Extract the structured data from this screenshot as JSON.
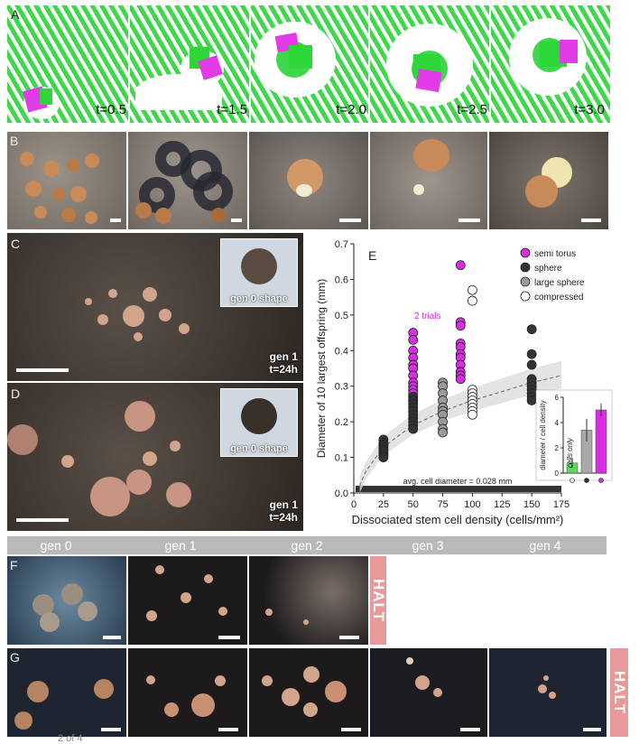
{
  "panels": {
    "A": {
      "label": "A",
      "times": [
        "t=0.5",
        "t=1.5",
        "t=2.0",
        "t=2.5",
        "t=3.0"
      ]
    },
    "B": {
      "label": "B"
    },
    "C": {
      "label": "C",
      "inset_label": "gen 0 shape",
      "gen_label": "gen 1",
      "time_label": "t=24h"
    },
    "D": {
      "label": "D",
      "inset_label": "gen 0 shape",
      "gen_label": "gen 1",
      "time_label": "t=24h"
    },
    "E": {
      "label": "E"
    },
    "F": {
      "label": "F",
      "halt": "HALT"
    },
    "G": {
      "label": "G",
      "halt": "HALT"
    }
  },
  "generation_bar": [
    "gen 0",
    "gen 1",
    "gen 2",
    "gen 3",
    "gen 4"
  ],
  "pager": "2 of 4",
  "colors": {
    "green": "#3fd84a",
    "magenta": "#d62ee0",
    "halt": "#e89a9a",
    "genbar": "#b9b9b9"
  },
  "chart_data": {
    "type": "scatter",
    "xlabel": "Dissociated stem cell density (cells/mm²)",
    "ylabel": "Diameter of 10 largest offspring (mm)",
    "xlim": [
      0,
      175
    ],
    "ylim": [
      0,
      0.7
    ],
    "xticks": [
      0,
      25,
      50,
      75,
      100,
      125,
      150,
      175
    ],
    "yticks": [
      0.0,
      0.1,
      0.2,
      0.3,
      0.4,
      0.5,
      0.6,
      0.7
    ],
    "annotation_trials": "2 trials",
    "annotation_baseline": "avg. cell diameter = 0.028 mm",
    "legend_position": "top-right",
    "series": [
      {
        "name": "semi torus",
        "color": "#d62ee0",
        "x": [
          50,
          50,
          50,
          50,
          50,
          50,
          50,
          50,
          50,
          50,
          50,
          50,
          50,
          90,
          90,
          90,
          90,
          90,
          90,
          90,
          90,
          90,
          90,
          90
        ],
        "y": [
          0.45,
          0.43,
          0.4,
          0.38,
          0.36,
          0.35,
          0.33,
          0.31,
          0.3,
          0.29,
          0.28,
          0.27,
          0.26,
          0.64,
          0.48,
          0.47,
          0.42,
          0.41,
          0.39,
          0.38,
          0.36,
          0.34,
          0.33,
          0.32
        ]
      },
      {
        "name": "sphere",
        "color": "#333333",
        "x": [
          25,
          25,
          25,
          25,
          25,
          25,
          25,
          25,
          25,
          25,
          50,
          50,
          50,
          50,
          50,
          50,
          50,
          50,
          50,
          50,
          150,
          150,
          150,
          150,
          150,
          150,
          150,
          150,
          150,
          150
        ],
        "y": [
          0.15,
          0.14,
          0.135,
          0.13,
          0.125,
          0.12,
          0.115,
          0.11,
          0.105,
          0.1,
          0.27,
          0.26,
          0.25,
          0.24,
          0.23,
          0.22,
          0.21,
          0.2,
          0.19,
          0.18,
          0.46,
          0.39,
          0.36,
          0.32,
          0.31,
          0.3,
          0.29,
          0.28,
          0.27,
          0.26
        ]
      },
      {
        "name": "large sphere",
        "color": "#9a9a9a",
        "x": [
          75,
          75,
          75,
          75,
          75,
          75,
          75,
          75,
          75,
          75
        ],
        "y": [
          0.31,
          0.3,
          0.28,
          0.26,
          0.24,
          0.23,
          0.22,
          0.2,
          0.18,
          0.17
        ]
      },
      {
        "name": "compressed",
        "color": "#ffffff",
        "x": [
          100,
          100,
          100,
          100,
          100,
          100,
          100,
          100,
          100,
          100
        ],
        "y": [
          0.57,
          0.54,
          0.29,
          0.28,
          0.27,
          0.26,
          0.25,
          0.24,
          0.23,
          0.22
        ]
      }
    ],
    "fit_curve": {
      "x": [
        5,
        10,
        25,
        50,
        75,
        100,
        125,
        150,
        175
      ],
      "y": [
        0.02,
        0.06,
        0.13,
        0.19,
        0.23,
        0.26,
        0.285,
        0.31,
        0.33
      ]
    },
    "inset": {
      "type": "bar",
      "ylabel": "diameter / cell density",
      "bar_text": "cells only",
      "yticks": [
        0,
        2,
        4,
        6
      ],
      "ylim": [
        0,
        6
      ],
      "values": [
        0.8,
        3.4,
        5.0
      ],
      "errors": [
        0.4,
        0.9,
        0.5
      ],
      "colors": [
        "#5fd85f",
        "#a9a9a9",
        "#d62ee0"
      ]
    }
  }
}
